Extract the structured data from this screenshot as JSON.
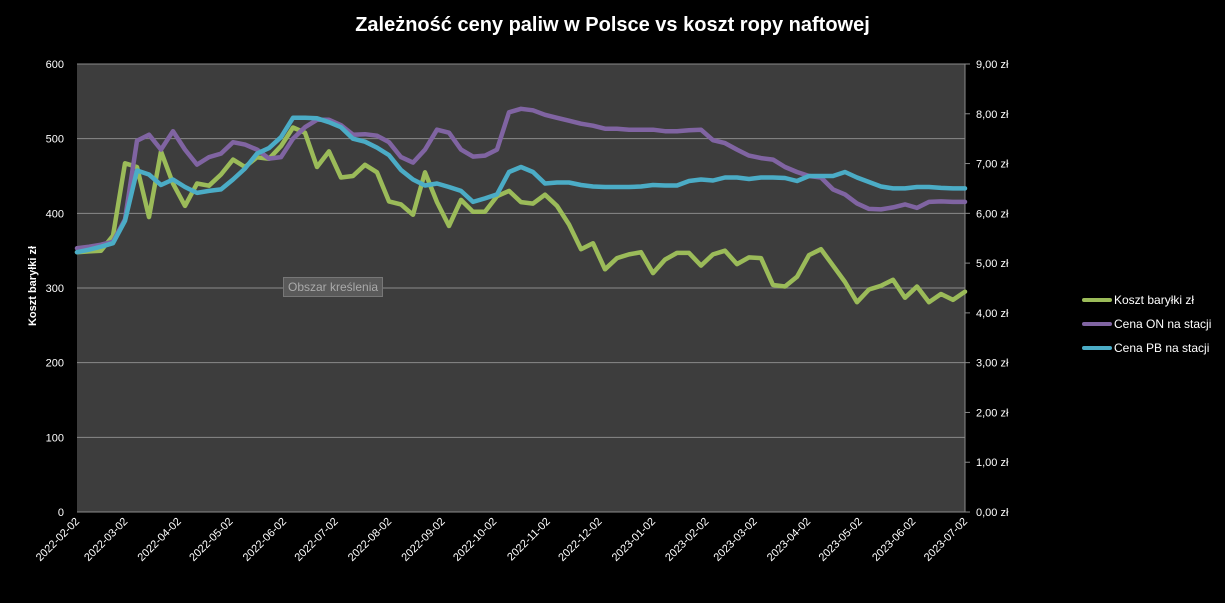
{
  "chart_data": {
    "type": "line",
    "title": "Zależność ceny paliw w Polsce vs koszt ropy naftowej",
    "ylabel": "Koszt baryłki zł",
    "ylabel_right": "",
    "ylim": [
      0,
      600
    ],
    "ylim_right": [
      0,
      9
    ],
    "yticks": [
      "0",
      "100",
      "200",
      "300",
      "400",
      "500",
      "600"
    ],
    "yticks_right": [
      "0,00 zł",
      "1,00 zł",
      "2,00 zł",
      "3,00 zł",
      "4,00 zł",
      "5,00 zł",
      "6,00 zł",
      "7,00 zł",
      "8,00 zł",
      "9,00 zł"
    ],
    "x_start": "2022-02-02",
    "x_step_days": 7,
    "xticks": [
      "2022-02-02",
      "2022-03-02",
      "2022-04-02",
      "2022-05-02",
      "2022-06-02",
      "2022-07-02",
      "2022-08-02",
      "2022-09-02",
      "2022-10-02",
      "2022-11-02",
      "2022-12-02",
      "2023-01-02",
      "2023-02-02",
      "2023-03-02",
      "2023-04-02",
      "2023-05-02",
      "2023-06-02",
      "2023-07-02"
    ],
    "grid": true,
    "legend_position": "right",
    "tooltip": "Obszar kreślenia",
    "series": [
      {
        "name": "Koszt baryłki zł",
        "axis": "left",
        "color": "#9bbb59",
        "values": [
          348,
          349,
          350,
          370,
          467,
          462,
          395,
          483,
          440,
          410,
          440,
          437,
          452,
          472,
          462,
          475,
          473,
          490,
          515,
          508,
          462,
          483,
          448,
          450,
          465,
          455,
          416,
          412,
          398,
          455,
          415,
          383,
          418,
          402,
          402,
          423,
          430,
          415,
          413,
          425,
          410,
          385,
          352,
          360,
          325,
          340,
          345,
          348,
          320,
          338,
          347,
          347,
          330,
          345,
          350,
          332,
          341,
          340,
          304,
          302,
          315,
          344,
          352,
          330,
          308,
          281,
          298,
          303,
          311,
          287,
          302,
          281,
          292,
          284,
          295
        ]
      },
      {
        "name": "Cena ON na stacji",
        "axis": "right",
        "color": "#8064a2",
        "values": [
          5.3,
          5.33,
          5.37,
          5.43,
          5.88,
          7.46,
          7.58,
          7.28,
          7.65,
          7.28,
          6.98,
          7.13,
          7.2,
          7.43,
          7.38,
          7.28,
          7.1,
          7.13,
          7.5,
          7.73,
          7.88,
          7.88,
          7.77,
          7.58,
          7.59,
          7.56,
          7.43,
          7.13,
          7.02,
          7.28,
          7.68,
          7.62,
          7.28,
          7.14,
          7.16,
          7.28,
          8.03,
          8.1,
          8.07,
          7.98,
          7.92,
          7.86,
          7.8,
          7.76,
          7.7,
          7.7,
          7.68,
          7.68,
          7.68,
          7.65,
          7.65,
          7.67,
          7.68,
          7.47,
          7.41,
          7.28,
          7.16,
          7.11,
          7.08,
          6.93,
          6.83,
          6.75,
          6.72,
          6.48,
          6.38,
          6.2,
          6.09,
          6.08,
          6.12,
          6.18,
          6.11,
          6.23,
          6.24,
          6.23,
          6.23
        ]
      },
      {
        "name": "Cena PB na stacji",
        "axis": "right",
        "color": "#4bacc6",
        "values": [
          5.22,
          5.27,
          5.33,
          5.4,
          5.85,
          6.86,
          6.78,
          6.57,
          6.68,
          6.53,
          6.41,
          6.45,
          6.48,
          6.68,
          6.9,
          7.2,
          7.31,
          7.53,
          7.92,
          7.92,
          7.91,
          7.83,
          7.73,
          7.5,
          7.44,
          7.32,
          7.17,
          6.87,
          6.68,
          6.56,
          6.6,
          6.53,
          6.45,
          6.23,
          6.3,
          6.38,
          6.83,
          6.93,
          6.83,
          6.6,
          6.62,
          6.62,
          6.57,
          6.54,
          6.53,
          6.53,
          6.53,
          6.54,
          6.57,
          6.56,
          6.56,
          6.65,
          6.68,
          6.66,
          6.72,
          6.72,
          6.69,
          6.72,
          6.72,
          6.71,
          6.65,
          6.75,
          6.75,
          6.75,
          6.83,
          6.72,
          6.63,
          6.54,
          6.5,
          6.5,
          6.53,
          6.53,
          6.51,
          6.5,
          6.5
        ]
      }
    ]
  }
}
